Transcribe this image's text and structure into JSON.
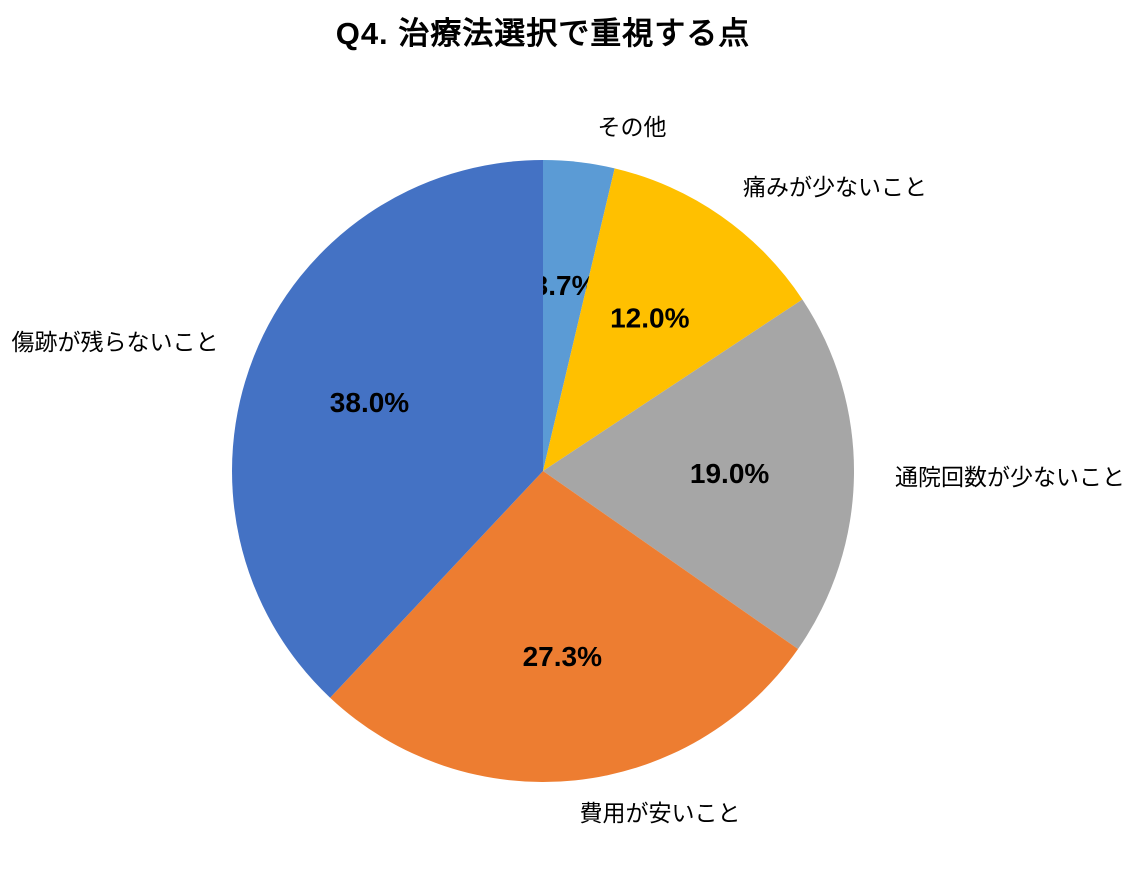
{
  "title": "Q4. 治療法選択で重視する点",
  "chart_data": {
    "type": "pie",
    "title": "Q4. 治療法選択で重視する点",
    "start_angle_deg": 0,
    "direction": "clockwise",
    "legend_position": "none",
    "label_style": "percent-inside-bold, category-outside",
    "text_color": "#000000",
    "background_color": "#FFFFFF",
    "slices": [
      {
        "label": "その他",
        "value": 3.7,
        "percent_label": "3.7%",
        "color": "#5B9BD5"
      },
      {
        "label": "痛みが少ないこと",
        "value": 12.0,
        "percent_label": "12.0%",
        "color": "#FFC000"
      },
      {
        "label": "通院回数が少ないこと",
        "value": 19.0,
        "percent_label": "19.0%",
        "color": "#A6A6A6"
      },
      {
        "label": "費用が安いこと",
        "value": 27.3,
        "percent_label": "27.3%",
        "color": "#ED7D31"
      },
      {
        "label": "傷跡が残らないこと",
        "value": 38.0,
        "percent_label": "38.0%",
        "color": "#4472C4"
      }
    ]
  }
}
